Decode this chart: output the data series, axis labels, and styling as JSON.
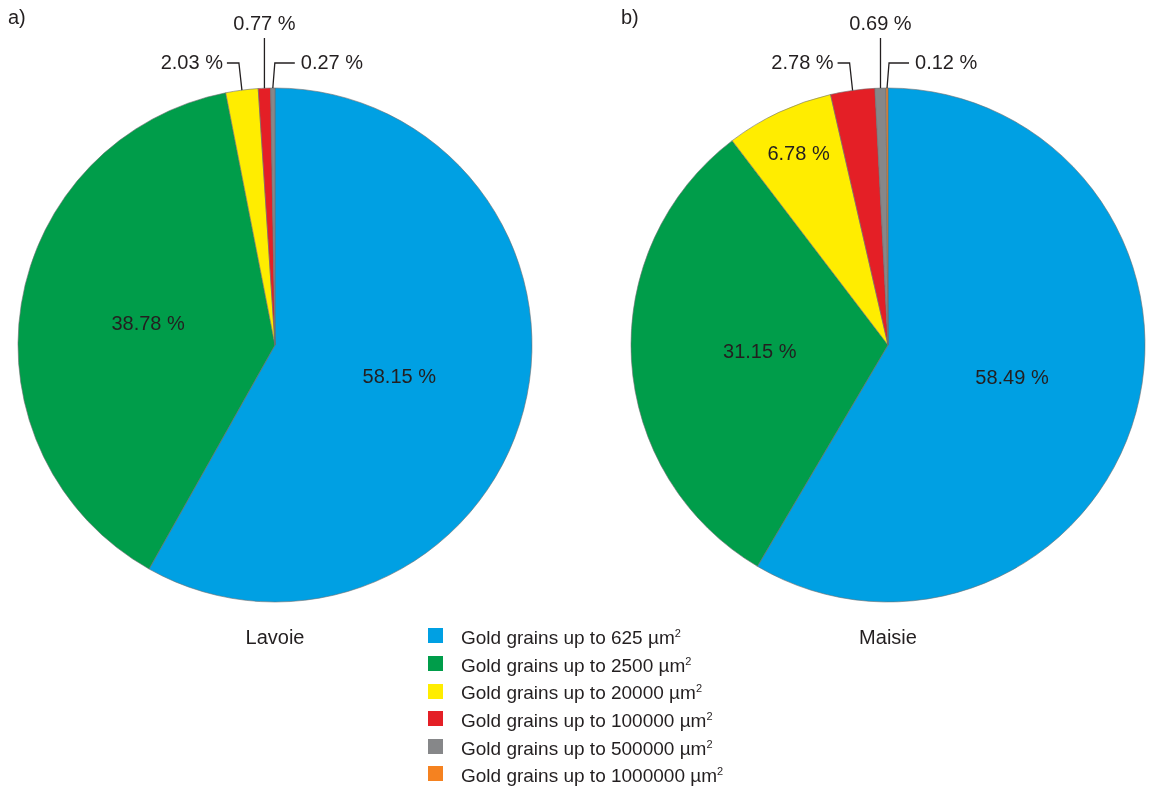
{
  "chart_data": [
    {
      "type": "pie",
      "title": "a)",
      "xlabel": "Lavoie",
      "legend": "bottom",
      "categories": [
        "Gold grains up to 625 µm$^{2}$",
        "Gold grains up to 2500 µm$^{2}$",
        "Gold grains up to 20000 µm$^{2}$",
        "Gold grains up to 100000 µm$^{2}$",
        "Gold grains up to 500000 µm$^{2}$",
        "Gold grains up to 1000000 µm$^{2}$"
      ],
      "values": [
        58.15,
        38.78,
        2.03,
        0.77,
        0.27,
        0
      ],
      "value_labels": [
        "58.15 %",
        "38.78 %",
        "2.03 %",
        "0.77 %",
        "0.27 %",
        null
      ],
      "colors": [
        "#00a0e3",
        "#009d4a",
        "#ffed00",
        "#e41f26",
        "#868789",
        "#f58220"
      ]
    },
    {
      "type": "pie",
      "title": "b)",
      "xlabel": "Maisie",
      "categories": [
        null,
        null,
        null,
        null,
        null,
        null
      ],
      "values": [
        58.49,
        31.15,
        6.78,
        2.78,
        0.69,
        0.12
      ],
      "value_labels": [
        "58.49 %",
        "31.15 %",
        "6.78 %",
        "2.78 %",
        "0.69 %",
        "0.12 %"
      ],
      "colors": [
        "#00a0e3",
        "#009d4a",
        "#ffed00",
        "#e41f26",
        "#868789",
        "#f58220"
      ]
    }
  ]
}
